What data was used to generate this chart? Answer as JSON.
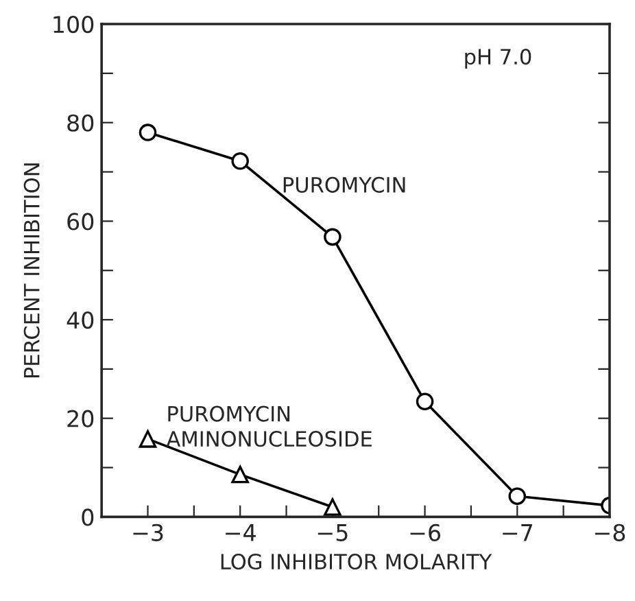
{
  "chart_data": {
    "type": "line",
    "xlabel": "LOG INHIBITOR MOLARITY",
    "ylabel": "PERCENT INHIBITION",
    "x": [
      -3,
      -4,
      -5,
      -6,
      -7,
      -8
    ],
    "series": [
      {
        "name": "PUROMYCIN",
        "color": "#000000",
        "marker": "circle",
        "values": [
          78,
          72.2,
          56.8,
          23.4,
          4.2,
          2.3
        ]
      },
      {
        "name": "PUROMYCIN\nAMINONUCLEOSIDE",
        "color": "#000000",
        "marker": "triangle",
        "x": [
          -3,
          -4,
          -5
        ],
        "values": [
          15.8,
          8.6,
          2
        ]
      }
    ],
    "xlim": [
      -2.5,
      -8
    ],
    "xticks": [
      -3,
      {
        "value": -3.5,
        "label": null
      },
      -4,
      {
        "value": -4.5,
        "label": null
      },
      -5,
      {
        "value": -5.5,
        "label": null
      },
      -6,
      {
        "value": -6.5,
        "label": null
      },
      -7,
      {
        "value": -7.5,
        "label": null
      },
      -8
    ],
    "ylim": [
      0,
      100
    ],
    "yticks": [
      0,
      {
        "value": 10,
        "label": null
      },
      20,
      {
        "value": 30,
        "label": null
      },
      40,
      {
        "value": 50,
        "label": null
      },
      60,
      {
        "value": 70,
        "label": null
      },
      80,
      {
        "value": 90,
        "label": null
      },
      100
    ],
    "annotations": [
      "pH 7.0"
    ],
    "grid": false,
    "legend": false
  }
}
